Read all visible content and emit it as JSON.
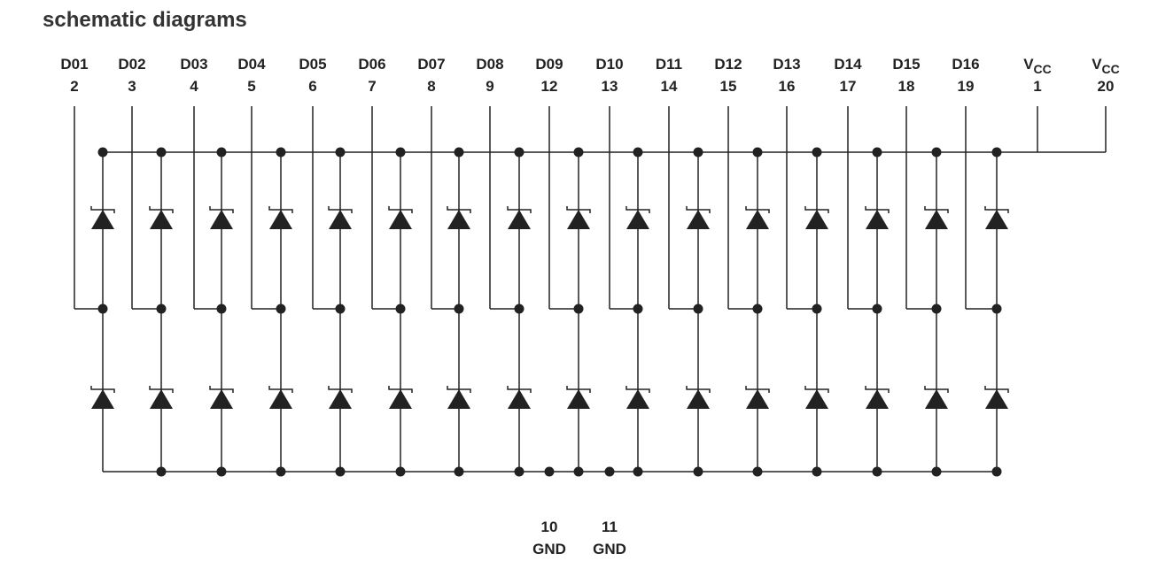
{
  "title": "schematic diagrams",
  "pins": [
    {
      "name": "D01",
      "number": 2
    },
    {
      "name": "D02",
      "number": 3
    },
    {
      "name": "D03",
      "number": 4
    },
    {
      "name": "D04",
      "number": 5
    },
    {
      "name": "D05",
      "number": 6
    },
    {
      "name": "D06",
      "number": 7
    },
    {
      "name": "D07",
      "number": 8
    },
    {
      "name": "D08",
      "number": 9
    },
    {
      "name": "D09",
      "number": 12
    },
    {
      "name": "D10",
      "number": 13
    },
    {
      "name": "D11",
      "number": 14
    },
    {
      "name": "D12",
      "number": 15
    },
    {
      "name": "D13",
      "number": 16
    },
    {
      "name": "D14",
      "number": 17
    },
    {
      "name": "D15",
      "number": 18
    },
    {
      "name": "D16",
      "number": 19
    }
  ],
  "vcc": [
    {
      "name": "V",
      "sub": "CC",
      "number": 1
    },
    {
      "name": "V",
      "sub": "CC",
      "number": 20
    }
  ],
  "gnd": [
    {
      "number": 10,
      "name": "GND"
    },
    {
      "number": 11,
      "name": "GND"
    }
  ]
}
